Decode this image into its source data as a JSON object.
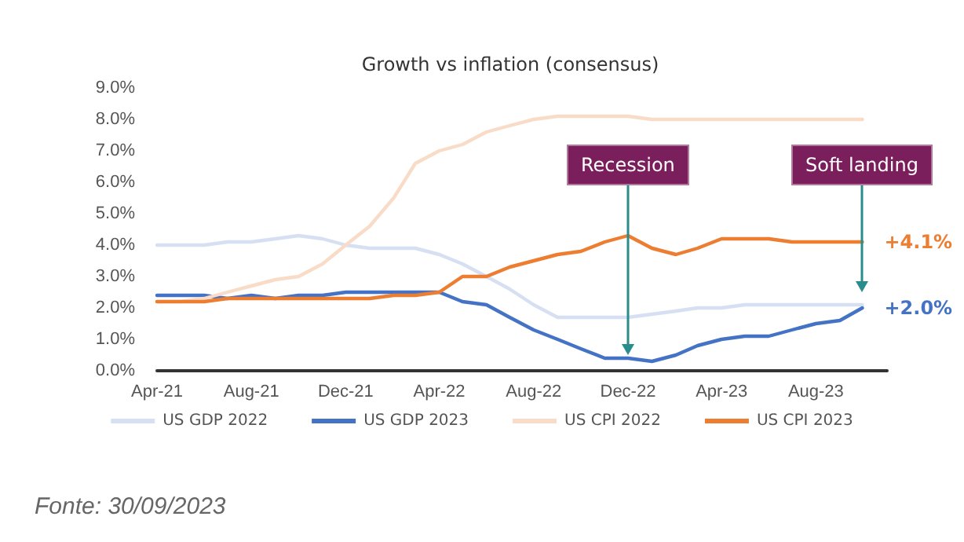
{
  "chart_data": {
    "type": "line",
    "title": "Growth vs inflation (consensus)",
    "x": [
      "2021-04-01",
      "2021-05-01",
      "2021-06-01",
      "2021-07-01",
      "2021-08-01",
      "2021-09-01",
      "2021-10-01",
      "2021-11-01",
      "2021-12-01",
      "2022-01-01",
      "2022-02-01",
      "2022-03-01",
      "2022-04-01",
      "2022-05-01",
      "2022-06-01",
      "2022-07-01",
      "2022-08-01",
      "2022-09-01",
      "2022-10-01",
      "2022-11-01",
      "2022-12-01",
      "2023-01-01",
      "2023-02-01",
      "2023-03-01",
      "2023-04-01",
      "2023-05-01",
      "2023-06-01",
      "2023-07-01",
      "2023-08-01",
      "2023-09-01",
      "2023-09-30"
    ],
    "series": [
      {
        "name": "US GDP 2022",
        "color": "#d6e0f2",
        "values": [
          4.0,
          4.0,
          4.0,
          4.1,
          4.1,
          4.2,
          4.3,
          4.2,
          4.0,
          3.9,
          3.9,
          3.9,
          3.7,
          3.4,
          3.0,
          2.6,
          2.1,
          1.7,
          1.7,
          1.7,
          1.7,
          1.8,
          1.9,
          2.0,
          2.0,
          2.1,
          2.1,
          2.1,
          2.1,
          2.1,
          2.1
        ]
      },
      {
        "name": "US GDP 2023",
        "color": "#4472c4",
        "values": [
          2.4,
          2.4,
          2.4,
          2.3,
          2.4,
          2.3,
          2.4,
          2.4,
          2.5,
          2.5,
          2.5,
          2.5,
          2.5,
          2.2,
          2.1,
          1.7,
          1.3,
          1.0,
          0.7,
          0.4,
          0.4,
          0.3,
          0.5,
          0.8,
          1.0,
          1.1,
          1.1,
          1.3,
          1.5,
          1.6,
          2.0
        ]
      },
      {
        "name": "US CPI 2022",
        "color": "#f9dcc8",
        "values": [
          2.2,
          2.2,
          2.3,
          2.5,
          2.7,
          2.9,
          3.0,
          3.4,
          4.0,
          4.6,
          5.5,
          6.6,
          7.0,
          7.2,
          7.6,
          7.8,
          8.0,
          8.1,
          8.1,
          8.1,
          8.1,
          8.0,
          8.0,
          8.0,
          8.0,
          8.0,
          8.0,
          8.0,
          8.0,
          8.0,
          8.0
        ]
      },
      {
        "name": "US CPI 2023",
        "color": "#ed7d31",
        "values": [
          2.2,
          2.2,
          2.2,
          2.3,
          2.3,
          2.3,
          2.3,
          2.3,
          2.3,
          2.3,
          2.4,
          2.4,
          2.5,
          3.0,
          3.0,
          3.3,
          3.5,
          3.7,
          3.8,
          4.1,
          4.3,
          3.9,
          3.7,
          3.9,
          4.2,
          4.2,
          4.2,
          4.1,
          4.1,
          4.1,
          4.1
        ]
      }
    ],
    "xlim": [
      "2021-04-01",
      "2023-11-01"
    ],
    "xticks": [
      {
        "value": "2021-04-01",
        "label": "Apr-21"
      },
      {
        "value": "2021-08-01",
        "label": "Aug-21"
      },
      {
        "value": "2021-12-01",
        "label": "Dec-21"
      },
      {
        "value": "2022-04-01",
        "label": "Apr-22"
      },
      {
        "value": "2022-08-01",
        "label": "Aug-22"
      },
      {
        "value": "2022-12-01",
        "label": "Dec-22"
      },
      {
        "value": "2023-04-01",
        "label": "Apr-23"
      },
      {
        "value": "2023-08-01",
        "label": "Aug-23"
      }
    ],
    "ylim": [
      0,
      9
    ],
    "yticks": [
      {
        "value": 0,
        "label": "0.0%"
      },
      {
        "value": 1,
        "label": "1.0%"
      },
      {
        "value": 2,
        "label": "2.0%"
      },
      {
        "value": 3,
        "label": "3.0%"
      },
      {
        "value": 4,
        "label": "4.0%"
      },
      {
        "value": 5,
        "label": "5.0%"
      },
      {
        "value": 6,
        "label": "6.0%"
      },
      {
        "value": 7,
        "label": "7.0%"
      },
      {
        "value": 8,
        "label": "8.0%"
      },
      {
        "value": 9,
        "label": "9.0%"
      }
    ],
    "annotations": [
      {
        "text": "Recession",
        "x": "2022-12-01",
        "y": 0.4
      },
      {
        "text": "Soft landing",
        "x": "2023-09-30",
        "y": 2.4
      },
      {
        "text": "+4.1%",
        "x": "2023-09-30",
        "y": 4.1
      },
      {
        "text": "+2.0%",
        "x": "2023-09-30",
        "y": 2.0
      },
      "Fonte: 30/09/2023"
    ],
    "grid": false,
    "legend": "bottom",
    "marker": "none",
    "line_style": "solid"
  }
}
